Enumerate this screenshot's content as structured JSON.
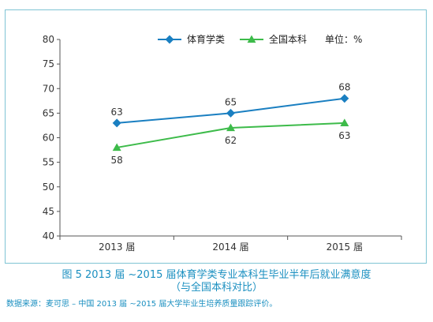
{
  "chart_data": {
    "type": "line",
    "categories": [
      "2013 届",
      "2014 届",
      "2015 届"
    ],
    "series": [
      {
        "name": "体育学类",
        "values": [
          63,
          65,
          68
        ],
        "color": "#1a7fc1",
        "marker": "diamond",
        "label_position": "above"
      },
      {
        "name": "全国本科",
        "values": [
          58,
          62,
          63
        ],
        "color": "#3dbb4a",
        "marker": "triangle",
        "label_position": "below"
      }
    ],
    "ylim": [
      40,
      80
    ],
    "yticks": [
      40,
      45,
      50,
      55,
      60,
      65,
      70,
      75,
      80
    ],
    "unit_note": "单位：%",
    "legend_position": "top",
    "grid": false
  },
  "figure": {
    "title": "图 5 2013 届 ~2015 届体育学类专业本科生毕业半年后就业满意度",
    "subtitle": "（与全国本科对比）",
    "source": "数据来源：麦可思 – 中国 2013 届 ~2015 届大学毕业生培养质量跟踪评价。"
  },
  "colors": {
    "frame": "#7fc4d4",
    "caption": "#1a8fc0",
    "axis": "#555555"
  }
}
